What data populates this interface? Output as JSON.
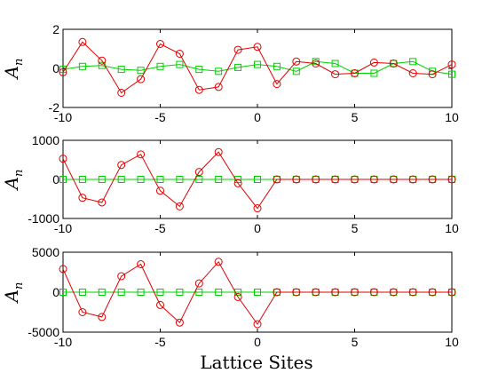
{
  "figure": {
    "xlabel": "Lattice Sites",
    "ylabel_main": "A",
    "ylabel_sub": "n"
  },
  "colors": {
    "series_red": "#e00000",
    "series_green": "#00d000"
  },
  "chart_data": [
    {
      "type": "line",
      "x": [
        -10,
        -9,
        -8,
        -7,
        -6,
        -5,
        -4,
        -3,
        -2,
        -1,
        0,
        1,
        2,
        3,
        4,
        5,
        6,
        7,
        8,
        9,
        10
      ],
      "xlim": [
        -10,
        10
      ],
      "ylim": [
        -2,
        2
      ],
      "xticks": [
        -10,
        -5,
        0,
        5,
        10
      ],
      "yticks": [
        2,
        0,
        -2
      ],
      "ylabel": "A_n",
      "series": [
        {
          "marker": "circle",
          "color": "#e00000",
          "values": [
            -0.2,
            1.35,
            0.4,
            -1.25,
            -0.55,
            1.25,
            0.75,
            -1.1,
            -0.95,
            0.95,
            1.1,
            -0.8,
            0.35,
            0.25,
            -0.3,
            -0.25,
            0.3,
            0.25,
            -0.25,
            -0.3,
            0.2
          ]
        },
        {
          "marker": "square",
          "color": "#00d000",
          "values": [
            -0.05,
            0.1,
            0.15,
            -0.05,
            -0.1,
            0.1,
            0.2,
            -0.05,
            -0.15,
            0.05,
            0.2,
            0.1,
            -0.15,
            0.35,
            0.25,
            -0.25,
            -0.25,
            0.25,
            0.35,
            -0.15,
            -0.3
          ]
        }
      ]
    },
    {
      "type": "line",
      "x": [
        -10,
        -9,
        -8,
        -7,
        -6,
        -5,
        -4,
        -3,
        -2,
        -1,
        0,
        1,
        2,
        3,
        4,
        5,
        6,
        7,
        8,
        9,
        10
      ],
      "xlim": [
        -10,
        10
      ],
      "ylim": [
        -1000,
        1000
      ],
      "xticks": [
        -10,
        -5,
        0,
        5,
        10
      ],
      "yticks": [
        1000,
        0,
        -1000
      ],
      "ylabel": "A_n",
      "series": [
        {
          "marker": "circle",
          "color": "#e00000",
          "values": [
            530,
            -470,
            -590,
            370,
            640,
            -290,
            -690,
            190,
            700,
            -100,
            -740,
            0,
            0,
            0,
            0,
            0,
            0,
            0,
            0,
            0,
            0
          ]
        },
        {
          "marker": "square",
          "color": "#00d000",
          "values": [
            0,
            0,
            0,
            0,
            0,
            0,
            0,
            0,
            0,
            0,
            0,
            0,
            0,
            0,
            0,
            0,
            0,
            0,
            0,
            0,
            0
          ]
        }
      ]
    },
    {
      "type": "line",
      "x": [
        -10,
        -9,
        -8,
        -7,
        -6,
        -5,
        -4,
        -3,
        -2,
        -1,
        0,
        1,
        2,
        3,
        4,
        5,
        6,
        7,
        8,
        9,
        10
      ],
      "xlim": [
        -10,
        10
      ],
      "ylim": [
        -5000,
        5000
      ],
      "xticks": [
        -10,
        -5,
        0,
        5,
        10
      ],
      "yticks": [
        5000,
        0,
        -5000
      ],
      "ylabel": "A_n",
      "series": [
        {
          "marker": "circle",
          "color": "#e00000",
          "values": [
            2900,
            -2500,
            -3100,
            2000,
            3500,
            -1600,
            -3800,
            1100,
            3800,
            -600,
            -4000,
            0,
            0,
            0,
            0,
            0,
            0,
            0,
            0,
            0,
            0
          ]
        },
        {
          "marker": "square",
          "color": "#00d000",
          "values": [
            0,
            0,
            0,
            0,
            0,
            0,
            0,
            0,
            0,
            0,
            0,
            0,
            0,
            0,
            0,
            0,
            0,
            0,
            0,
            0,
            0
          ]
        }
      ]
    }
  ]
}
